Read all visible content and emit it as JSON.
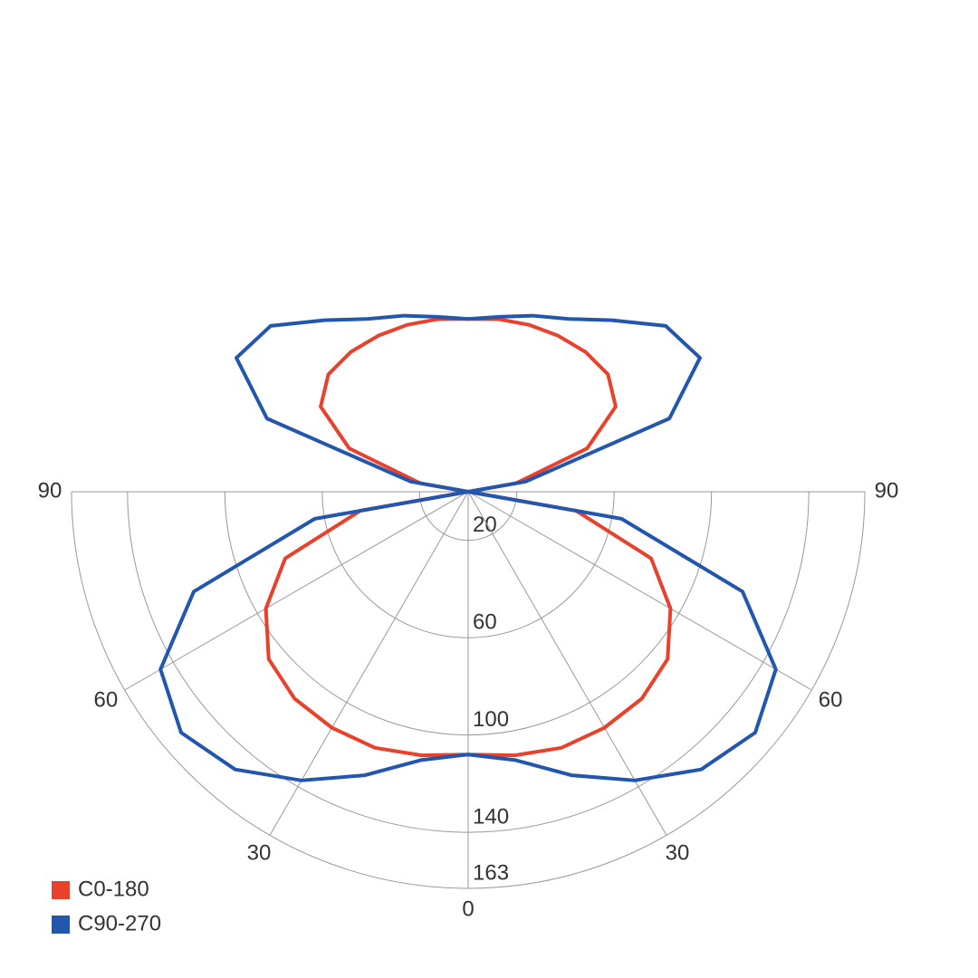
{
  "chart_data": {
    "type": "polar",
    "x": [
      0,
      10,
      20,
      30,
      40,
      50,
      60,
      70,
      80,
      90,
      100,
      110,
      120,
      130,
      140,
      150,
      160,
      170,
      180
    ],
    "series": [
      {
        "name": "C0-180",
        "color": "#e8412c",
        "values": [
          108,
          110,
          112,
          112,
          111,
          107,
          96,
          80,
          45,
          0,
          20,
          52,
          70,
          75,
          75,
          74,
          73,
          72,
          71
        ]
      },
      {
        "name": "C90-270",
        "color": "#2257ad",
        "values": [
          108,
          112,
          124,
          137,
          149,
          154,
          146,
          120,
          64,
          0,
          24,
          88,
          110,
          106,
          92,
          82,
          77,
          73,
          71
        ]
      }
    ],
    "rlim": [
      0,
      163
    ],
    "rticks": [
      20,
      60,
      100,
      140,
      163
    ],
    "angleticks": [
      0,
      30,
      60,
      90
    ],
    "legend": "lower left"
  }
}
